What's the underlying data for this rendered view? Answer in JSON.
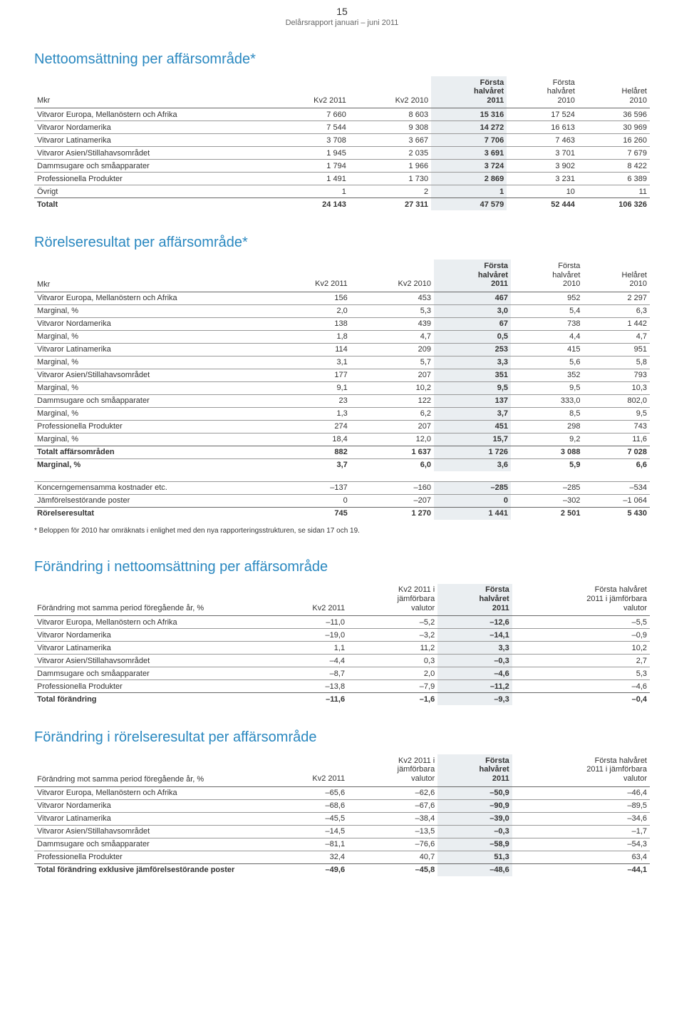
{
  "header": {
    "page_number": "15",
    "subtitle": "Delårsrapport januari – juni 2011"
  },
  "sections": {
    "net_sales": {
      "title": "Nettoomsättning per affärsområde*",
      "row_label_header": "Mkr",
      "columns": [
        {
          "l1": "",
          "l2": "",
          "l3": "Kv2 2011",
          "hl": false
        },
        {
          "l1": "",
          "l2": "",
          "l3": "Kv2 2010",
          "hl": false
        },
        {
          "l1": "Första",
          "l2": "halvåret",
          "l3": "2011",
          "hl": true
        },
        {
          "l1": "Första",
          "l2": "halvåret",
          "l3": "2010",
          "hl": false
        },
        {
          "l1": "",
          "l2": "Helåret",
          "l3": "2010",
          "hl": false
        }
      ],
      "rows": [
        {
          "label": "Vitvaror Europa, Mellanöstern och Afrika",
          "v": [
            "7 660",
            "8 603",
            "15 316",
            "17 524",
            "36 596"
          ],
          "line": true
        },
        {
          "label": "Vitvaror Nordamerika",
          "v": [
            "7 544",
            "9 308",
            "14 272",
            "16 613",
            "30 969"
          ],
          "line": true
        },
        {
          "label": "Vitvaror Latinamerika",
          "v": [
            "3 708",
            "3 667",
            "7 706",
            "7 463",
            "16 260"
          ],
          "line": true
        },
        {
          "label": "Vitvaror Asien/Stillahavsområdet",
          "v": [
            "1 945",
            "2 035",
            "3 691",
            "3 701",
            "7 679"
          ],
          "line": true
        },
        {
          "label": "Dammsugare och småapparater",
          "v": [
            "1 794",
            "1 966",
            "3 724",
            "3 902",
            "8 422"
          ],
          "line": true
        },
        {
          "label": "Professionella Produkter",
          "v": [
            "1 491",
            "1 730",
            "2 869",
            "3 231",
            "6 389"
          ],
          "line": true
        },
        {
          "label": "Övrigt",
          "v": [
            "1",
            "2",
            "1",
            "10",
            "11"
          ],
          "line": true
        },
        {
          "label": "Totalt",
          "v": [
            "24 143",
            "27 311",
            "47 579",
            "52 444",
            "106 326"
          ],
          "bold": true,
          "divider": true
        }
      ]
    },
    "operating_income": {
      "title": "Rörelseresultat per affärsområde*",
      "row_label_header": "Mkr",
      "columns": [
        {
          "l1": "",
          "l2": "",
          "l3": "Kv2 2011",
          "hl": false
        },
        {
          "l1": "",
          "l2": "",
          "l3": "Kv2 2010",
          "hl": false
        },
        {
          "l1": "Första",
          "l2": "halvåret",
          "l3": "2011",
          "hl": true
        },
        {
          "l1": "Första",
          "l2": "halvåret",
          "l3": "2010",
          "hl": false
        },
        {
          "l1": "",
          "l2": "Helåret",
          "l3": "2010",
          "hl": false
        }
      ],
      "rows": [
        {
          "label": "Vitvaror Europa, Mellanöstern och Afrika",
          "v": [
            "156",
            "453",
            "467",
            "952",
            "2 297"
          ],
          "line": true
        },
        {
          "label": "Marginal, %",
          "v": [
            "2,0",
            "5,3",
            "3,0",
            "5,4",
            "6,3"
          ],
          "line": true
        },
        {
          "label": "Vitvaror Nordamerika",
          "v": [
            "138",
            "439",
            "67",
            "738",
            "1 442"
          ],
          "line": true
        },
        {
          "label": "Marginal, %",
          "v": [
            "1,8",
            "4,7",
            "0,5",
            "4,4",
            "4,7"
          ],
          "line": true
        },
        {
          "label": "Vitvaror Latinamerika",
          "v": [
            "114",
            "209",
            "253",
            "415",
            "951"
          ],
          "line": true
        },
        {
          "label": "Marginal, %",
          "v": [
            "3,1",
            "5,7",
            "3,3",
            "5,6",
            "5,8"
          ],
          "line": true
        },
        {
          "label": "Vitvaror Asien/Stillahavsområdet",
          "v": [
            "177",
            "207",
            "351",
            "352",
            "793"
          ],
          "line": true
        },
        {
          "label": "Marginal, %",
          "v": [
            "9,1",
            "10,2",
            "9,5",
            "9,5",
            "10,3"
          ],
          "line": true
        },
        {
          "label": "Dammsugare och småapparater",
          "v": [
            "23",
            "122",
            "137",
            "333,0",
            "802,0"
          ],
          "line": true
        },
        {
          "label": "Marginal, %",
          "v": [
            "1,3",
            "6,2",
            "3,7",
            "8,5",
            "9,5"
          ],
          "line": true
        },
        {
          "label": "Professionella Produkter",
          "v": [
            "274",
            "207",
            "451",
            "298",
            "743"
          ],
          "line": true
        },
        {
          "label": "Marginal, %",
          "v": [
            "18,4",
            "12,0",
            "15,7",
            "9,2",
            "11,6"
          ],
          "line": true
        },
        {
          "label": "Totalt affärsområden",
          "v": [
            "882",
            "1 637",
            "1 726",
            "3 088",
            "7 028"
          ],
          "bold": true,
          "divider": true
        },
        {
          "label": "Marginal, %",
          "v": [
            "3,7",
            "6,0",
            "3,6",
            "5,9",
            "6,6"
          ],
          "bold": true,
          "line": true
        },
        {
          "spacer": true
        },
        {
          "label": "Koncerngemensamma kostnader etc.",
          "v": [
            "–137",
            "–160",
            "–285",
            "–285",
            "–534"
          ],
          "line": true
        },
        {
          "label": "Jämförelsestörande poster",
          "v": [
            "0",
            "–207",
            "0",
            "–302",
            "–1 064"
          ],
          "line": true
        },
        {
          "label": "Rörelseresultat",
          "v": [
            "745",
            "1 270",
            "1 441",
            "2 501",
            "5 430"
          ],
          "bold": true,
          "divider": true
        }
      ],
      "footnote": "* Beloppen för 2010 har omräknats i enlighet med den nya rapporteringsstrukturen, se sidan 17 och 19."
    },
    "change_net_sales": {
      "title": "Förändring i nettoomsättning per affärsområde",
      "row_label_header": "Förändring mot samma period föregående år, %",
      "columns": [
        {
          "l1": "",
          "l2": "",
          "l3": "Kv2 2011",
          "hl": false
        },
        {
          "l1": "Kv2 2011 i",
          "l2": "jämförbara",
          "l3": "valutor",
          "hl": false
        },
        {
          "l1": "Första",
          "l2": "halvåret",
          "l3": "2011",
          "hl": true
        },
        {
          "l1": "Första halvåret",
          "l2": "2011 i jämförbara",
          "l3": "valutor",
          "hl": false
        }
      ],
      "rows": [
        {
          "label": "Vitvaror Europa, Mellanöstern och Afrika",
          "v": [
            "–11,0",
            "–5,2",
            "–12,6",
            "–5,5"
          ],
          "line": true
        },
        {
          "label": "Vitvaror Nordamerika",
          "v": [
            "–19,0",
            "–3,2",
            "–14,1",
            "–0,9"
          ],
          "line": true
        },
        {
          "label": "Vitvaror Latinamerika",
          "v": [
            "1,1",
            "11,2",
            "3,3",
            "10,2"
          ],
          "line": true
        },
        {
          "label": "Vitvaror Asien/Stillahavsområdet",
          "v": [
            "–4,4",
            "0,3",
            "–0,3",
            "2,7"
          ],
          "line": true
        },
        {
          "label": "Dammsugare och småapparater",
          "v": [
            "–8,7",
            "2,0",
            "–4,6",
            "5,3"
          ],
          "line": true
        },
        {
          "label": "Professionella Produkter",
          "v": [
            "–13,8",
            "–7,9",
            "–11,2",
            "–4,6"
          ],
          "line": true
        },
        {
          "label": "Total förändring",
          "v": [
            "–11,6",
            "–1,6",
            "–9,3",
            "–0,4"
          ],
          "bold": true,
          "divider": true
        }
      ]
    },
    "change_operating": {
      "title": "Förändring i rörelseresultat per affärsområde",
      "row_label_header": "Förändring mot samma period föregående år, %",
      "columns": [
        {
          "l1": "",
          "l2": "",
          "l3": "Kv2 2011",
          "hl": false
        },
        {
          "l1": "Kv2 2011 i",
          "l2": "jämförbara",
          "l3": "valutor",
          "hl": false
        },
        {
          "l1": "Första",
          "l2": "halvåret",
          "l3": "2011",
          "hl": true
        },
        {
          "l1": "Första halvåret",
          "l2": "2011 i jämförbara",
          "l3": "valutor",
          "hl": false
        }
      ],
      "rows": [
        {
          "label": "Vitvaror Europa, Mellanöstern och Afrika",
          "v": [
            "–65,6",
            "–62,6",
            "–50,9",
            "–46,4"
          ],
          "line": true
        },
        {
          "label": "Vitvaror Nordamerika",
          "v": [
            "–68,6",
            "–67,6",
            "–90,9",
            "–89,5"
          ],
          "line": true
        },
        {
          "label": "Vitvaror Latinamerika",
          "v": [
            "–45,5",
            "–38,4",
            "–39,0",
            "–34,6"
          ],
          "line": true
        },
        {
          "label": "Vitvaror Asien/Stillahavsområdet",
          "v": [
            "–14,5",
            "–13,5",
            "–0,3",
            "–1,7"
          ],
          "line": true
        },
        {
          "label": "Dammsugare och småapparater",
          "v": [
            "–81,1",
            "–76,6",
            "–58,9",
            "–54,3"
          ],
          "line": true
        },
        {
          "label": "Professionella Produkter",
          "v": [
            "32,4",
            "40,7",
            "51,3",
            "63,4"
          ],
          "line": true
        },
        {
          "label": "Total förändring exklusive jämförelsestörande poster",
          "v": [
            "–49,6",
            "–45,8",
            "–48,6",
            "–44,1"
          ],
          "bold": true,
          "divider": true
        }
      ]
    }
  }
}
